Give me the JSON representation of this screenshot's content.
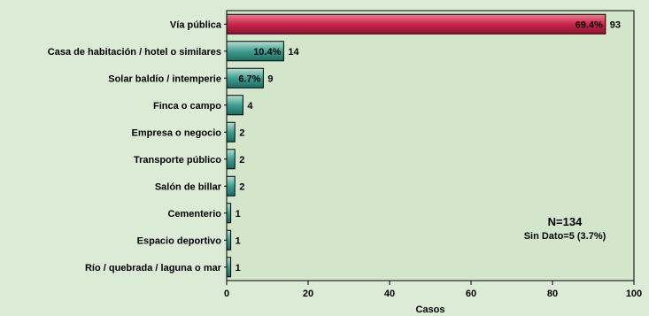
{
  "chart_data": {
    "type": "bar",
    "orientation": "horizontal",
    "categories": [
      "Vía pública",
      "Casa de habitación / hotel o similares",
      "Solar baldío / intemperie",
      "Finca o campo",
      "Empresa o negocio",
      "Transporte público",
      "Salón de billar",
      "Cementerio",
      "Espacio deportivo",
      "Río / quebrada / laguna o mar"
    ],
    "values": [
      93,
      14,
      9,
      4,
      2,
      2,
      2,
      1,
      1,
      1
    ],
    "percent_labels": [
      "69.4%",
      "10.4%",
      "6.7%",
      "",
      "",
      "",
      "",
      "",
      "",
      ""
    ],
    "xlabel": "Casos",
    "xlim": [
      0,
      100
    ],
    "xticks": [
      "0",
      "20",
      "40",
      "60",
      "80",
      "100"
    ],
    "grid": false,
    "legend": "none",
    "annotation": {
      "line1": "N=134",
      "line2": "Sin Dato=5 (3.7%)"
    },
    "colors": {
      "background": "#dcebd6",
      "plot_background": "#d3e6cc",
      "top_bar": "#c9274a",
      "other_bars": "#3f9f92"
    }
  }
}
